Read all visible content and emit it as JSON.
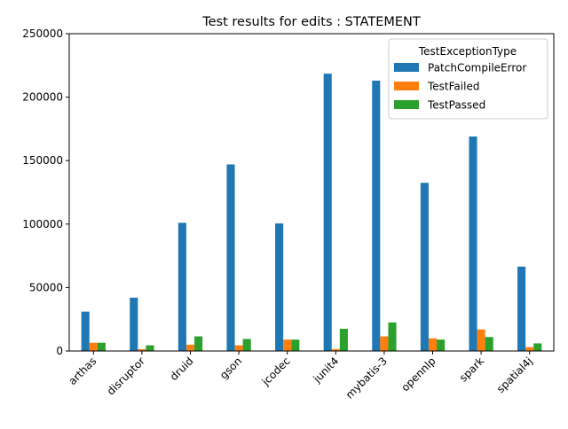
{
  "chart_data": {
    "type": "bar",
    "title": "Test results for edits : STATEMENT",
    "xlabel": "",
    "ylabel": "",
    "ylim": [
      0,
      250000
    ],
    "yticks": [
      0,
      50000,
      100000,
      150000,
      200000,
      250000
    ],
    "grid": false,
    "legend": {
      "title": "TestExceptionType",
      "placement": "top-right"
    },
    "categories": [
      "arthas",
      "disruptor",
      "druid",
      "gson",
      "jcodec",
      "junit4",
      "mybatis-3",
      "opennlp",
      "spark",
      "spatial4j"
    ],
    "series": [
      {
        "name": "PatchCompileError",
        "color": "#1f77b4",
        "values": [
          31000,
          42000,
          101000,
          147000,
          100500,
          218500,
          213000,
          132500,
          169000,
          66500
        ]
      },
      {
        "name": "TestFailed",
        "color": "#ff7f0e",
        "values": [
          6500,
          1500,
          5000,
          4500,
          9000,
          1500,
          11500,
          10000,
          17000,
          3000
        ]
      },
      {
        "name": "TestPassed",
        "color": "#2ca02c",
        "values": [
          6500,
          4500,
          11500,
          9500,
          9000,
          17500,
          22500,
          9000,
          11000,
          6000
        ]
      }
    ]
  }
}
